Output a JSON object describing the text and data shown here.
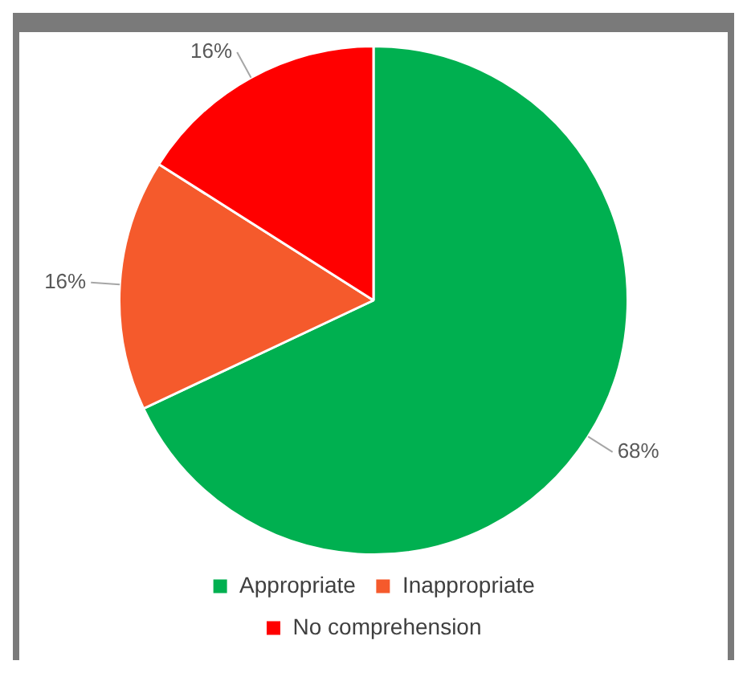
{
  "chart_data": {
    "type": "pie",
    "categories": [
      "Appropriate",
      "Inappropriate",
      "No comprehension"
    ],
    "values": [
      68,
      16,
      16
    ],
    "colors": [
      "#00b050",
      "#f55a2c",
      "#ff0000"
    ],
    "value_labels": [
      "68%",
      "16%",
      "16%"
    ],
    "legend": "bottom"
  }
}
